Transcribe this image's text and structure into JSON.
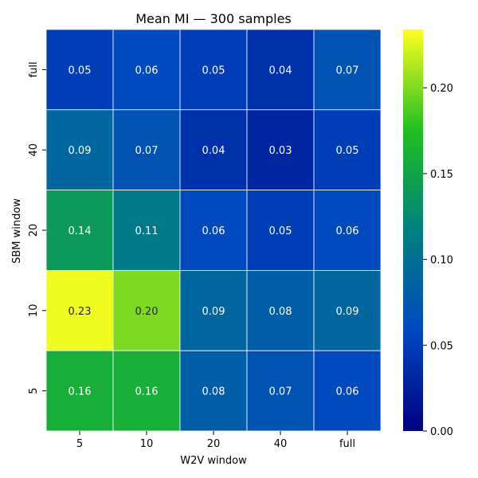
{
  "chart_data": {
    "type": "heatmap",
    "title": "Mean MI — 300 samples",
    "xlabel": "W2V window",
    "ylabel": "SBM window",
    "x_categories": [
      "5",
      "10",
      "20",
      "40",
      "full"
    ],
    "y_categories": [
      "full",
      "40",
      "20",
      "10",
      "5"
    ],
    "values": [
      [
        0.05,
        0.06,
        0.05,
        0.04,
        0.07
      ],
      [
        0.09,
        0.07,
        0.04,
        0.03,
        0.05
      ],
      [
        0.14,
        0.11,
        0.06,
        0.05,
        0.06
      ],
      [
        0.23,
        0.2,
        0.09,
        0.08,
        0.09
      ],
      [
        0.16,
        0.16,
        0.08,
        0.07,
        0.06
      ]
    ],
    "value_labels": [
      [
        "0.05",
        "0.06",
        "0.05",
        "0.04",
        "0.07"
      ],
      [
        "0.09",
        "0.07",
        "0.04",
        "0.03",
        "0.05"
      ],
      [
        "0.14",
        "0.11",
        "0.06",
        "0.05",
        "0.06"
      ],
      [
        "0.23",
        "0.20",
        "0.09",
        "0.08",
        "0.09"
      ],
      [
        "0.16",
        "0.16",
        "0.08",
        "0.07",
        "0.06"
      ]
    ],
    "colorbar": {
      "range": [
        0.0,
        0.234
      ],
      "ticks": [
        0.0,
        0.05,
        0.1,
        0.15,
        0.2
      ],
      "tick_labels": [
        "0.00",
        "0.05",
        "0.10",
        "0.15",
        "0.20"
      ],
      "colormap": [
        "#000080",
        "#0048c0",
        "#008080",
        "#20c020",
        "#ffff20"
      ]
    }
  }
}
